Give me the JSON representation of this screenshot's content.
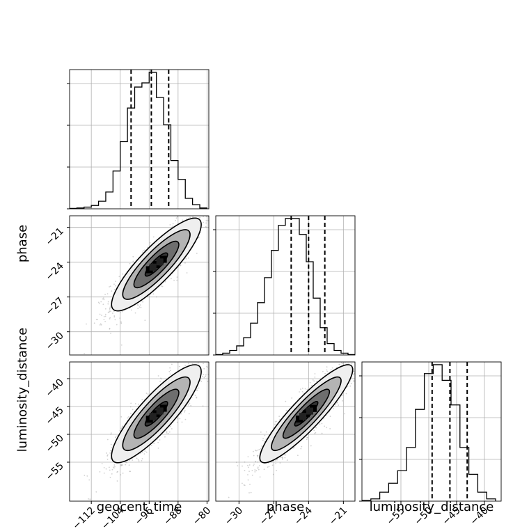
{
  "chart_data": {
    "type": "corner",
    "parameters": [
      "geocent_time",
      "phase",
      "luminosity_distance"
    ],
    "axis_labels": [
      "geocent_time",
      "phase",
      "luminosity_distance"
    ],
    "ranges": [
      [
        -118,
        -79.5
      ],
      [
        -32,
        -20
      ],
      [
        -62,
        -37
      ]
    ],
    "ticks": [
      [
        -112,
        -104,
        -96,
        -88,
        -80
      ],
      [
        -30,
        -27,
        -24,
        -21
      ],
      [
        -55,
        -50,
        -45,
        -40
      ]
    ],
    "tick_labels": [
      [
        "−112",
        "−104",
        "−96",
        "−88",
        "−80"
      ],
      [
        "−30",
        "−27",
        "−24",
        "−21"
      ],
      [
        "−55",
        "−50",
        "−45",
        "−40"
      ]
    ],
    "grid": true,
    "histograms": [
      {
        "parameter": "geocent_time",
        "bin_edges": [
          -118,
          -116,
          -114,
          -112,
          -110,
          -108,
          -106,
          -104,
          -102,
          -100,
          -98,
          -96,
          -94,
          -92,
          -90,
          -88,
          -86,
          -84,
          -82,
          -80
        ],
        "counts": [
          1,
          2,
          4,
          8,
          18,
          40,
          90,
          160,
          240,
          290,
          300,
          325,
          265,
          200,
          115,
          70,
          25,
          10,
          2
        ],
        "quantiles": [
          -101,
          -95.4,
          -90.6
        ]
      },
      {
        "parameter": "phase",
        "bin_edges": [
          -32,
          -31.4,
          -30.8,
          -30.2,
          -29.6,
          -29,
          -28.4,
          -27.8,
          -27.2,
          -26.6,
          -26,
          -25.4,
          -24.8,
          -24.2,
          -23.6,
          -23,
          -22.4,
          -21.8,
          -21.2,
          -20.6,
          -20
        ],
        "counts": [
          1,
          4,
          10,
          20,
          38,
          70,
          115,
          170,
          230,
          285,
          300,
          300,
          265,
          205,
          125,
          60,
          25,
          10,
          4,
          1
        ],
        "quantiles": [
          -25.5,
          -24.0,
          -22.6
        ]
      },
      {
        "parameter": "luminosity_distance",
        "bin_edges": [
          -62,
          -60.4,
          -58.8,
          -57.2,
          -55.6,
          -54,
          -52.4,
          -50.8,
          -49.2,
          -47.6,
          -46,
          -44.4,
          -42.8,
          -41.2,
          -39.6,
          -38
        ],
        "counts": [
          2,
          5,
          20,
          40,
          68,
          120,
          205,
          285,
          305,
          270,
          215,
          120,
          60,
          20,
          5
        ],
        "quantiles": [
          -49.4,
          -46.2,
          -43.1
        ]
      }
    ],
    "pairs": [
      {
        "x": "geocent_time",
        "y": "phase",
        "mean": [
          -94,
          -24.2
        ],
        "sd": [
          6.2,
          2.0
        ],
        "corr": 0.86
      },
      {
        "x": "geocent_time",
        "y": "luminosity_distance",
        "mean": [
          -94,
          -46.3
        ],
        "sd": [
          6.2,
          4.4
        ],
        "corr": 0.86
      },
      {
        "x": "phase",
        "y": "luminosity_distance",
        "mean": [
          -24.2,
          -46.3
        ],
        "sd": [
          2.0,
          4.4
        ],
        "corr": 0.9
      }
    ],
    "contour_levels_sigma": [
      0.5,
      1.0,
      1.5,
      2.0
    ]
  }
}
